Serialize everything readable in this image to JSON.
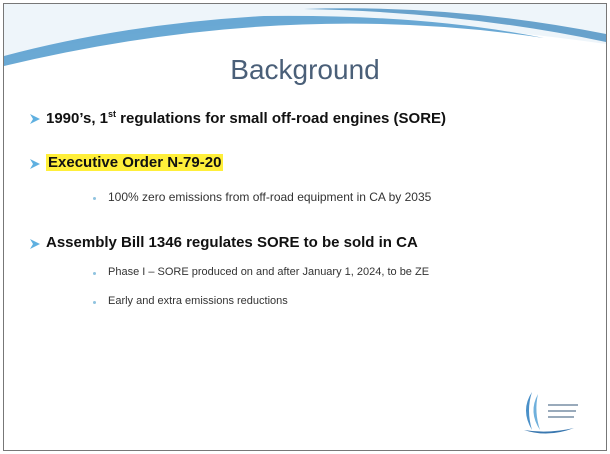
{
  "slide": {
    "title": "Background",
    "bullets": [
      {
        "before": "1990’s, 1",
        "sup": "st",
        "after": " regulations for small off-road engines (SORE)"
      },
      {
        "text": "Executive Order N-79-20",
        "subs": [
          "100% zero emissions from off-road equipment in CA by 2035"
        ]
      },
      {
        "text": "Assembly Bill 1346 regulates SORE to be sold in CA",
        "subs": [
          "Phase I – SORE produced on and after January 1, 2024, to be ZE",
          "Early and extra emissions reductions"
        ]
      }
    ]
  }
}
